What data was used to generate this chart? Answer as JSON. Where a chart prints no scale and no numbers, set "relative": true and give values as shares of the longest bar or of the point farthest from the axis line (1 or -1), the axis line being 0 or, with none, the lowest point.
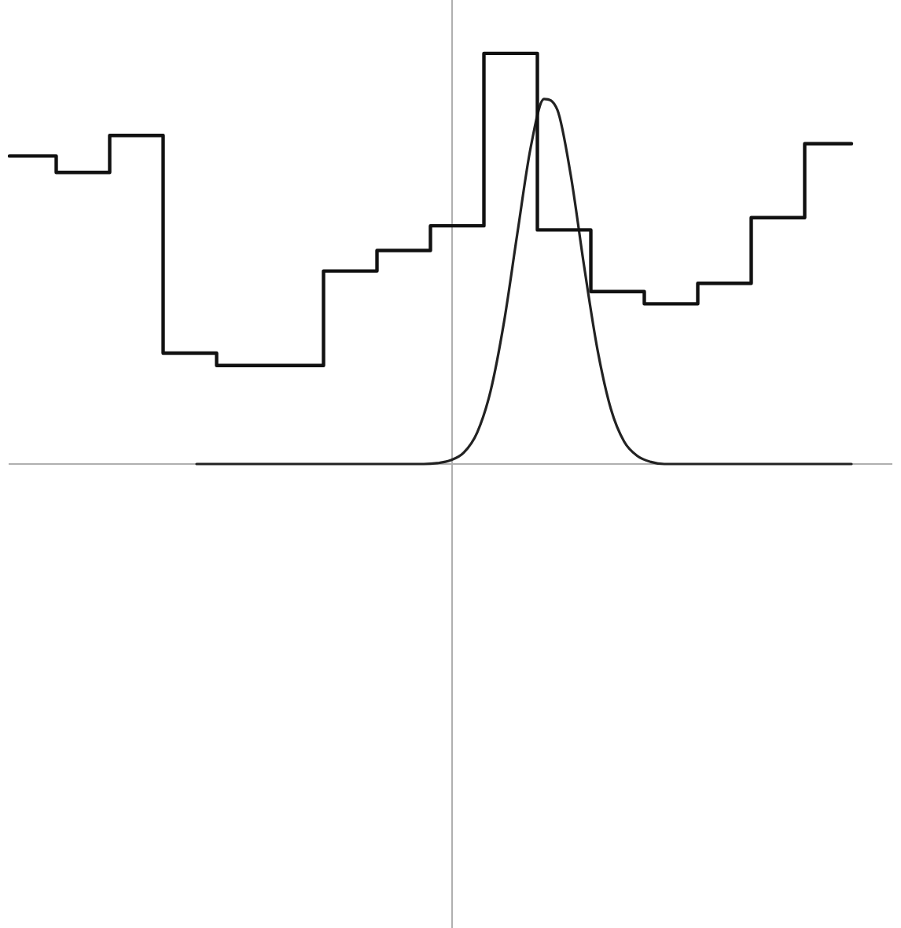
{
  "chart_data": {
    "type": "line",
    "relative": true,
    "grid": false,
    "legend": false,
    "categories": [
      null,
      null,
      null,
      null,
      null,
      null,
      null,
      null,
      null,
      null,
      null,
      null,
      null,
      null,
      null,
      null,
      null,
      null,
      null,
      null,
      null,
      null,
      null,
      null,
      null,
      null,
      null,
      null,
      null,
      null,
      null,
      null,
      null,
      null,
      null,
      null,
      null,
      null,
      null,
      null,
      null,
      null,
      null,
      null,
      null,
      null,
      null,
      null,
      null,
      null,
      null,
      null,
      null,
      null,
      null,
      null,
      null,
      null,
      null,
      null,
      null,
      null,
      null,
      null,
      null,
      null,
      null
    ],
    "series": [
      {
        "type": "step",
        "color": "#111111",
        "values": [
          0.75,
          0.75,
          0.75,
          0.75,
          0.71,
          0.71,
          0.71,
          0.71,
          0.8,
          0.8,
          0.8,
          0.8,
          0.27,
          0.27,
          0.27,
          0.27,
          0.24,
          0.24,
          0.24,
          0.24,
          0.24,
          0.24,
          0.24,
          0.24,
          0.47,
          0.47,
          0.47,
          0.47,
          0.52,
          0.52,
          0.52,
          0.52,
          0.58,
          0.58,
          0.58,
          0.58,
          1,
          1,
          1,
          1,
          0.57,
          0.57,
          0.57,
          0.57,
          0.42,
          0.42,
          0.42,
          0.42,
          0.39,
          0.39,
          0.39,
          0.39,
          0.44,
          0.44,
          0.44,
          0.44,
          0.6,
          0.6,
          0.6,
          0.6,
          0.78,
          0.78,
          0.78,
          0.78,
          null,
          null,
          null
        ]
      },
      {
        "type": "line",
        "color": "#222222",
        "values": [
          null,
          null,
          null,
          null,
          null,
          null,
          null,
          null,
          null,
          null,
          null,
          null,
          null,
          null,
          0,
          0,
          0,
          0,
          0,
          0,
          0,
          0,
          0,
          0,
          0,
          0,
          0,
          0,
          0,
          0,
          0,
          0,
          0.002,
          0.009,
          0.028,
          0.077,
          0.178,
          0.345,
          0.561,
          0.771,
          0.889,
          0.862,
          0.703,
          0.481,
          0.278,
          0.134,
          0.054,
          0.019,
          0.005,
          0,
          0,
          0,
          0,
          0,
          0,
          0,
          0,
          0,
          0,
          0,
          0,
          0,
          0,
          0,
          null,
          null,
          null
        ]
      }
    ]
  }
}
